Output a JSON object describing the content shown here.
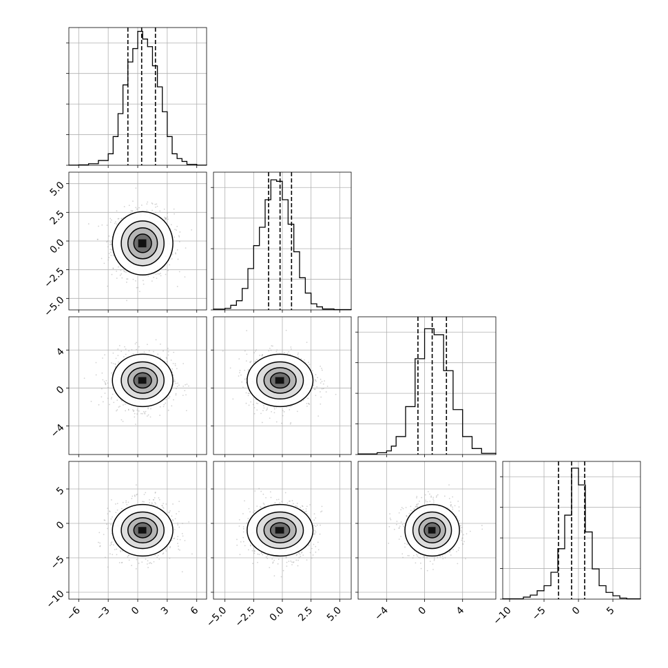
{
  "chart_data": {
    "type": "corner",
    "title": "",
    "n_params": 4,
    "grid": true,
    "quantiles": [
      0.16,
      0.5,
      0.84
    ],
    "style": {
      "hist_color": "#000000",
      "grid_color": "#b0b0b0",
      "points_color": "#999999",
      "density_color": "#000000"
    },
    "params": [
      {
        "label": "",
        "range": [
          -7.0,
          7.0
        ],
        "ticks": [
          -6,
          -3,
          0,
          3,
          6
        ],
        "tick_labels": [
          "−6",
          "−3",
          "0",
          "3",
          "6"
        ],
        "mean": 0.5,
        "sd": 1.5,
        "quantile_values": [
          -1.0,
          0.4,
          1.8
        ],
        "hist_bins": [
          -7.0,
          -6.0,
          -5.0,
          -4.0,
          -3.0,
          -2.5,
          -2.0,
          -1.5,
          -1.0,
          -0.5,
          0.0,
          0.5,
          1.0,
          1.5,
          2.0,
          2.5,
          3.0,
          3.5,
          4.0,
          4.5,
          5.0,
          6.0,
          7.0
        ],
        "hist_counts": [
          1,
          2,
          8,
          25,
          60,
          150,
          270,
          420,
          540,
          610,
          700,
          660,
          620,
          520,
          410,
          280,
          150,
          60,
          35,
          20,
          5,
          1
        ],
        "hist_ymax": 720
      },
      {
        "label": "",
        "range": [
          -6.0,
          6.0
        ],
        "ticks": [
          -5.0,
          -2.5,
          0.0,
          2.5,
          5.0
        ],
        "tick_labels": [
          "−5.0",
          "−2.5",
          "0.0",
          "2.5",
          "5.0"
        ],
        "mean": -0.2,
        "sd": 1.4,
        "quantile_values": [
          -1.2,
          -0.2,
          0.8
        ],
        "hist_bins": [
          -6.0,
          -5.0,
          -4.5,
          -4.0,
          -3.5,
          -3.0,
          -2.5,
          -2.0,
          -1.5,
          -1.0,
          -0.5,
          0.0,
          0.5,
          1.0,
          1.5,
          2.0,
          2.5,
          3.0,
          3.5,
          4.5,
          6.0
        ],
        "hist_counts": [
          5,
          10,
          30,
          60,
          140,
          270,
          420,
          540,
          720,
          850,
          840,
          720,
          560,
          380,
          210,
          110,
          40,
          20,
          6,
          2
        ],
        "hist_ymax": 900
      },
      {
        "label": "",
        "range": [
          -7.0,
          7.5
        ],
        "ticks": [
          -4,
          0,
          4
        ],
        "tick_labels": [
          "−4",
          "0",
          "4"
        ],
        "mean": 0.8,
        "sd": 1.4,
        "quantile_values": [
          -0.7,
          0.8,
          2.3
        ],
        "hist_bins": [
          -7.0,
          -5.0,
          -4.0,
          -3.5,
          -3.0,
          -2.0,
          -1.0,
          0.0,
          1.0,
          2.0,
          3.0,
          4.0,
          5.0,
          6.0,
          7.5
        ],
        "hist_counts": [
          1,
          3,
          6,
          14,
          30,
          80,
          160,
          210,
          200,
          140,
          75,
          30,
          10,
          2
        ],
        "hist_ymax": 230
      },
      {
        "label": "",
        "range": [
          -11.0,
          9.0
        ],
        "ticks": [
          -10,
          -5,
          0,
          5
        ],
        "tick_labels": [
          "−10",
          "−5",
          "0",
          "5"
        ],
        "mean": -1.0,
        "sd": 1.9,
        "quantile_values": [
          -2.9,
          -1.0,
          0.9
        ],
        "hist_bins": [
          -11.0,
          -8.0,
          -7.0,
          -6.0,
          -5.0,
          -4.0,
          -3.0,
          -2.0,
          -1.0,
          0.0,
          1.0,
          2.0,
          3.0,
          4.0,
          5.0,
          6.0,
          7.0,
          9.0
        ],
        "hist_counts": [
          1,
          6,
          12,
          25,
          40,
          80,
          150,
          250,
          390,
          340,
          200,
          90,
          40,
          20,
          10,
          3,
          1
        ],
        "hist_ymax": 410
      }
    ]
  }
}
